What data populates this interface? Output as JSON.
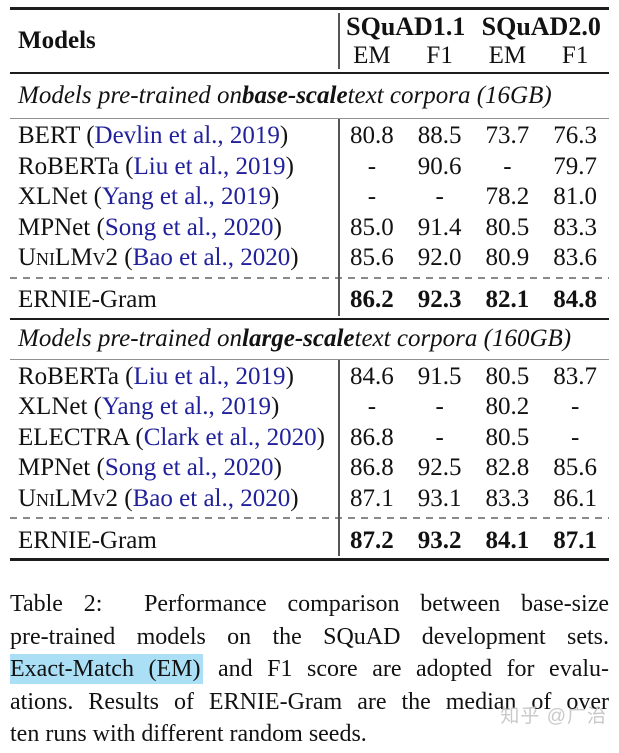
{
  "table": {
    "header": {
      "models_label": "Models",
      "group1": "SQuAD1.1",
      "group2": "SQuAD2.0",
      "sub": [
        "EM",
        "F1",
        "EM",
        "F1"
      ]
    },
    "sections": [
      {
        "heading_pre": "Models pre-trained on ",
        "heading_bold": "base-scale",
        "heading_post": " text corpora (16GB)",
        "rows": [
          {
            "pre": "BERT (",
            "cite": "Devlin et al., 2019",
            "post": ")",
            "values": [
              "80.8",
              "88.5",
              "73.7",
              "76.3"
            ]
          },
          {
            "pre": "RoBERTa (",
            "cite": "Liu et al., 2019",
            "post": ")",
            "values": [
              "-",
              "90.6",
              "-",
              "79.7"
            ]
          },
          {
            "pre": "XLNet (",
            "cite": "Yang et al., 2019",
            "post": ")",
            "values": [
              "-",
              "-",
              "78.2",
              "81.0"
            ]
          },
          {
            "pre": "MPNet (",
            "cite": "Song et al., 2020",
            "post": ")",
            "values": [
              "85.0",
              "91.4",
              "80.5",
              "83.3"
            ]
          },
          {
            "pre": "UniLMv2 (",
            "cite": "Bao et al., 2020",
            "post": ")",
            "values": [
              "85.6",
              "92.0",
              "80.9",
              "83.6"
            ]
          }
        ],
        "result_row": {
          "pre": "ERNIE-Gram",
          "values": [
            "86.2",
            "92.3",
            "82.1",
            "84.8"
          ]
        }
      },
      {
        "heading_pre": "Models pre-trained on ",
        "heading_bold": "large-scale",
        "heading_post": " text corpora (160GB)",
        "rows": [
          {
            "pre": "RoBERTa (",
            "cite": "Liu et al., 2019",
            "post": ")",
            "values": [
              "84.6",
              "91.5",
              "80.5",
              "83.7"
            ]
          },
          {
            "pre": "XLNet (",
            "cite": "Yang et al., 2019",
            "post": ")",
            "values": [
              "-",
              "-",
              "80.2",
              "-"
            ]
          },
          {
            "pre": "ELECTRA (",
            "cite": "Clark et al., 2020",
            "post": ")",
            "values": [
              "86.8",
              "-",
              "80.5",
              "-"
            ]
          },
          {
            "pre": "MPNet (",
            "cite": "Song et al., 2020",
            "post": ")",
            "values": [
              "86.8",
              "92.5",
              "82.8",
              "85.6"
            ]
          },
          {
            "pre": "UniLMv2 (",
            "cite": "Bao et al., 2020",
            "post": ")",
            "values": [
              "87.1",
              "93.1",
              "83.3",
              "86.1"
            ]
          }
        ],
        "result_row": {
          "pre": "ERNIE-Gram",
          "values": [
            "87.2",
            "93.2",
            "84.1",
            "87.1"
          ]
        }
      }
    ]
  },
  "caption": {
    "line1": "Table 2:  Performance comparison between base-size",
    "line2": "pre-trained models on the SQuAD development sets.",
    "line3_highlight": "Exact-Match (EM)",
    "line3_rest": " and F1 score are adopted for evalu-",
    "line4": "ations. Results of ERNIE-Gram are the median of over",
    "line5": "ten runs with different random seeds."
  },
  "watermark": "知乎 @广治",
  "colors": {
    "citation_blue": "#21219c",
    "highlight_blue": "#abdff5",
    "text": "#121212",
    "rule_dark": "#1c1c1c",
    "rule_light": "#909090",
    "dashed_gray": "#8a8a8a",
    "watermark_gray": "#c9c9c9",
    "background": "#ffffff"
  }
}
